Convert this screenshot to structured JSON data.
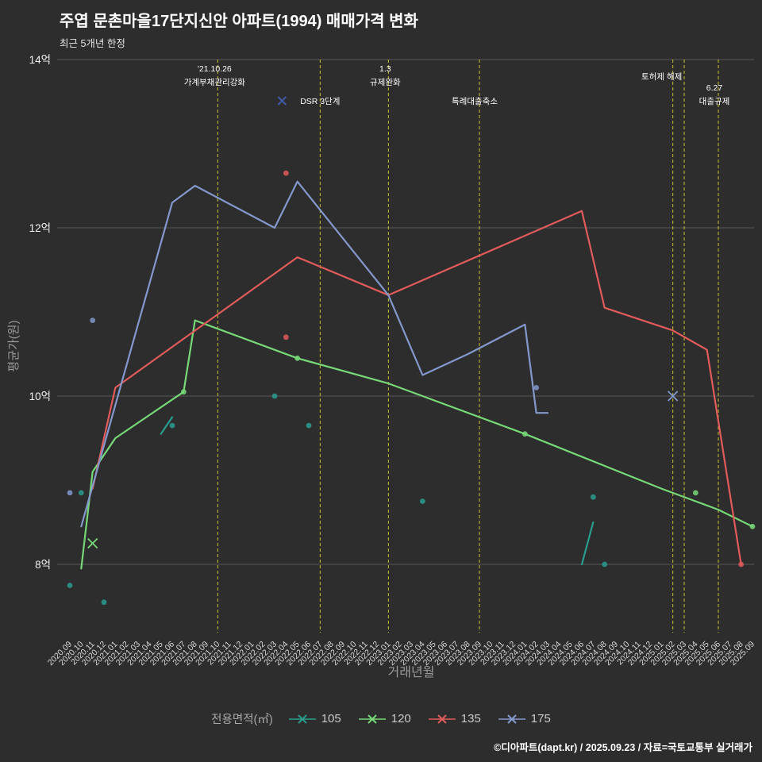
{
  "header": {
    "title": "주엽 문촌마을17단지신안 아파트(1994) 매매가격 변화",
    "subtitle": "최근 5개년 한정"
  },
  "footer": {
    "credit": "©디아파트(dapt.kr) / 2025.09.23 / 자료=국토교통부 실거래가"
  },
  "legend": {
    "label": "전용면적(㎡)",
    "items": [
      {
        "name": "105",
        "color": "#2a9d8f"
      },
      {
        "name": "120",
        "color": "#77d877"
      },
      {
        "name": "135",
        "color": "#e25b5b"
      },
      {
        "name": "175",
        "color": "#8398cc"
      }
    ]
  },
  "chart_data": {
    "type": "line",
    "title": "주엽 문촌마을17단지신안 아파트(1994) 매매가격 변화",
    "xlabel": "거래년월",
    "ylabel": "평균가(원)",
    "grid": true,
    "legend_position": "bottom",
    "ylim": [
      7.3,
      14.2
    ],
    "y_ticks": [
      {
        "v": 8,
        "label": "8억"
      },
      {
        "v": 10,
        "label": "10억"
      },
      {
        "v": 12,
        "label": "12억"
      },
      {
        "v": 14,
        "label": "14억"
      }
    ],
    "x_categories": [
      "2020.09",
      "2020.10",
      "2020.11",
      "2020.12",
      "2021.01",
      "2021.02",
      "2021.03",
      "2021.04",
      "2021.05",
      "2021.06",
      "2021.07",
      "2021.08",
      "2021.09",
      "2021.10",
      "2021.11",
      "2021.12",
      "2022.01",
      "2022.02",
      "2022.03",
      "2022.04",
      "2022.05",
      "2022.06",
      "2022.07",
      "2022.08",
      "2022.09",
      "2022.10",
      "2022.11",
      "2022.12",
      "2023.01",
      "2023.02",
      "2023.03",
      "2023.04",
      "2023.05",
      "2023.06",
      "2023.07",
      "2023.08",
      "2023.09",
      "2023.10",
      "2023.11",
      "2023.12",
      "2024.01",
      "2024.02",
      "2024.03",
      "2024.04",
      "2024.05",
      "2024.06",
      "2024.07",
      "2024.08",
      "2024.09",
      "2024.10",
      "2024.11",
      "2024.12",
      "2025.01",
      "2025.02",
      "2025.03",
      "2025.04",
      "2025.05",
      "2025.06",
      "2025.07",
      "2025.08",
      "2025.09"
    ],
    "series": [
      {
        "name": "105",
        "color": "#2a9d8f",
        "lines": [
          [
            [
              "2021.05",
              9.55
            ],
            [
              "2021.06",
              9.75
            ]
          ],
          [
            [
              "2024.06",
              8.0
            ],
            [
              "2024.07",
              8.5
            ]
          ]
        ],
        "dots": [
          [
            "2020.09",
            7.75
          ],
          [
            "2020.10",
            8.85
          ],
          [
            "2020.12",
            7.55
          ],
          [
            "2021.06",
            9.65
          ],
          [
            "2022.03",
            10.0
          ],
          [
            "2022.06",
            9.65
          ],
          [
            "2023.04",
            8.75
          ],
          [
            "2024.07",
            8.8
          ],
          [
            "2024.08",
            8.0
          ]
        ],
        "xmarks": []
      },
      {
        "name": "120",
        "color": "#77d877",
        "lines": [
          [
            [
              "2020.10",
              7.95
            ],
            [
              "2020.11",
              9.1
            ],
            [
              "2021.01",
              9.5
            ],
            [
              "2021.07",
              10.05
            ],
            [
              "2021.08",
              10.9
            ],
            [
              "2022.05",
              10.45
            ],
            [
              "2023.01",
              10.15
            ],
            [
              "2024.01",
              9.55
            ],
            [
              "2025.01",
              8.9
            ],
            [
              "2025.06",
              8.65
            ],
            [
              "2025.09",
              8.45
            ]
          ]
        ],
        "dots": [
          [
            "2021.07",
            10.05
          ],
          [
            "2022.05",
            10.45
          ],
          [
            "2024.01",
            9.55
          ],
          [
            "2025.04",
            8.85
          ],
          [
            "2025.09",
            8.45
          ]
        ],
        "xmarks": [
          [
            "2020.11",
            8.25
          ]
        ]
      },
      {
        "name": "135",
        "color": "#e25b5b",
        "lines": [
          [
            [
              "2020.11",
              8.9
            ],
            [
              "2021.01",
              10.1
            ],
            [
              "2022.05",
              11.65
            ],
            [
              "2023.01",
              11.2
            ],
            [
              "2024.06",
              12.2
            ],
            [
              "2024.08",
              11.05
            ],
            [
              "2025.02",
              10.78
            ],
            [
              "2025.05",
              10.55
            ],
            [
              "2025.08",
              8.0
            ]
          ]
        ],
        "dots": [
          [
            "2022.04",
            12.65
          ],
          [
            "2022.04",
            10.7
          ],
          [
            "2025.08",
            8.0
          ]
        ],
        "xmarks": []
      },
      {
        "name": "175",
        "color": "#8398cc",
        "lines": [
          [
            [
              "2020.10",
              8.45
            ],
            [
              "2021.06",
              12.3
            ],
            [
              "2021.08",
              12.5
            ],
            [
              "2022.03",
              12.0
            ],
            [
              "2022.05",
              12.55
            ],
            [
              "2023.01",
              11.2
            ],
            [
              "2023.04",
              10.25
            ],
            [
              "2023.08",
              10.5
            ],
            [
              "2024.01",
              10.85
            ],
            [
              "2024.02",
              9.8
            ],
            [
              "2024.03",
              9.8
            ]
          ]
        ],
        "dots": [
          [
            "2020.09",
            8.85
          ],
          [
            "2020.11",
            10.9
          ],
          [
            "2024.02",
            10.1
          ]
        ],
        "xmarks": [
          [
            "2025.02",
            10.0
          ]
        ]
      }
    ],
    "annotations": [
      {
        "month": "2021.10",
        "lines": [
          "'21.10.26",
          "가계부채관리강화"
        ],
        "y": [
          90,
          107
        ],
        "dx": -4
      },
      {
        "month": "2022.07",
        "lines": [
          "DSR 3단계"
        ],
        "y": [
          131
        ],
        "dx": 0,
        "marker_dx": -48,
        "marker_color": "#4059a8"
      },
      {
        "month": "2023.01",
        "lines": [
          "1.3",
          "규제완화"
        ],
        "y": [
          90,
          107
        ],
        "dx": -4
      },
      {
        "month": "2023.09",
        "lines": [
          "특례대출축소"
        ],
        "y": [
          131
        ],
        "dx": -6
      },
      {
        "month": "2025.02",
        "lines": [
          "토허제 해제"
        ],
        "y": [
          100
        ],
        "dx": -14
      },
      {
        "month": "2025.03",
        "lines": [],
        "y": [],
        "dx": 0
      },
      {
        "month": "2025.06",
        "lines": [
          "6.27",
          "대출규제"
        ],
        "y": [
          114,
          131
        ],
        "dx": -5
      }
    ],
    "annotation_line_color": "#c9c12f",
    "grid_color": "#565656"
  }
}
